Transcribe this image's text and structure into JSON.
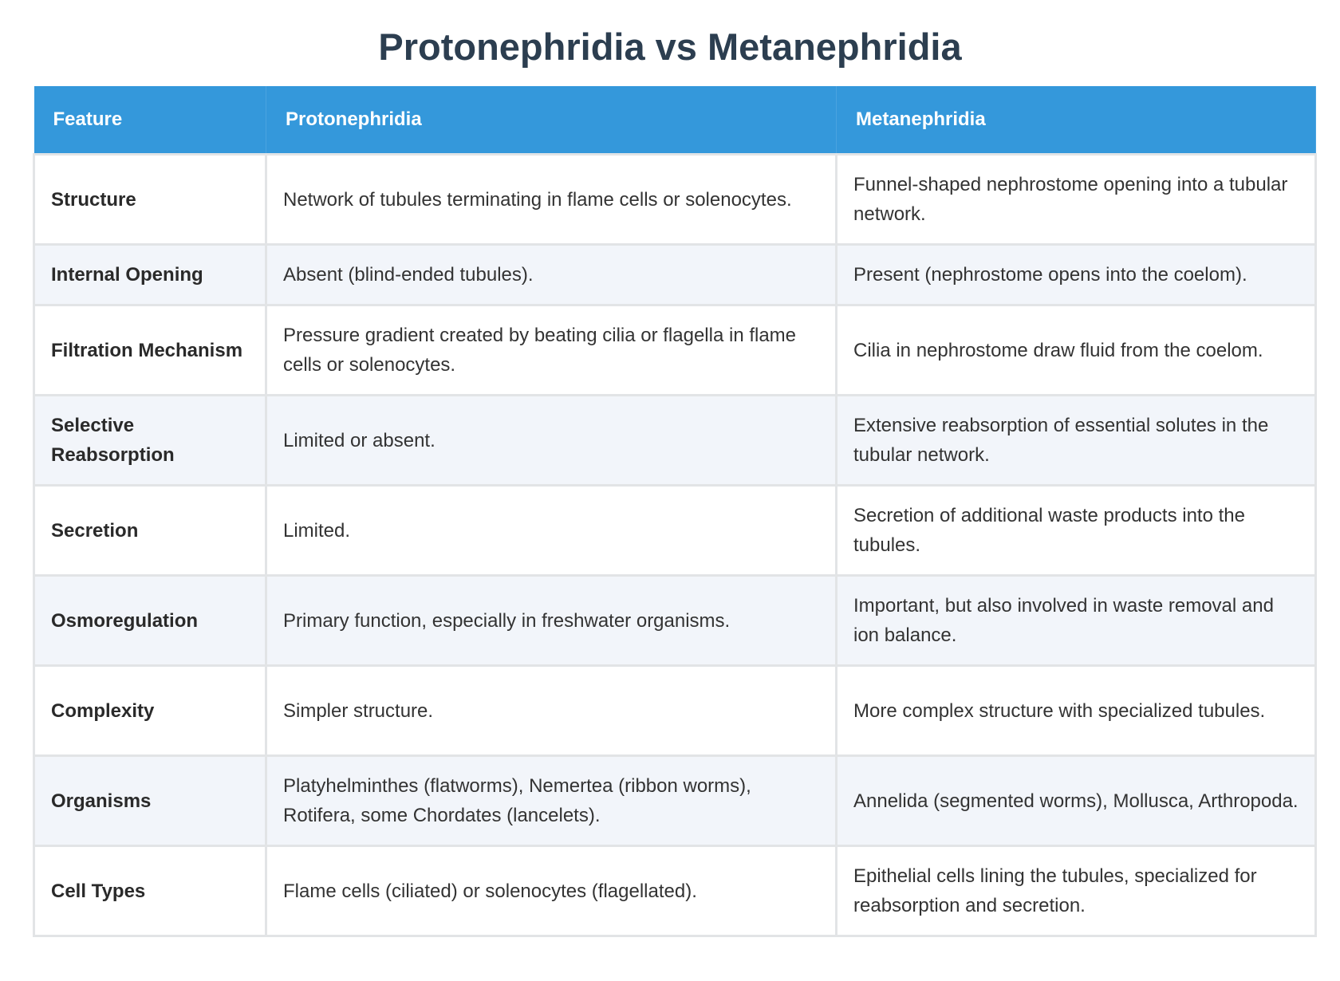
{
  "title": "Protonephridia vs Metanephridia",
  "headers": [
    "Feature",
    "Protonephridia",
    "Metanephridia"
  ],
  "rows": [
    [
      "Structure",
      "Network of tubules terminating in flame cells or solenocytes.",
      "Funnel-shaped nephrostome opening into a tubular network."
    ],
    [
      "Internal Opening",
      "Absent (blind-ended tubules).",
      "Present (nephrostome opens into the coelom)."
    ],
    [
      "Filtration Mechanism",
      "Pressure gradient created by beating cilia or flagella in flame cells or solenocytes.",
      "Cilia in nephrostome draw fluid from the coelom."
    ],
    [
      "Selective Reabsorption",
      "Limited or absent.",
      "Extensive reabsorption of essential solutes in the tubular network."
    ],
    [
      "Secretion",
      "Limited.",
      "Secretion of additional waste products into the tubules."
    ],
    [
      "Osmoregulation",
      "Primary function, especially in freshwater organisms.",
      "Important, but also involved in waste removal and ion balance."
    ],
    [
      "Complexity",
      "Simpler structure.",
      "More complex structure with specialized tubules."
    ],
    [
      "Organisms",
      "Platyhelminthes (flatworms), Nemertea (ribbon worms), Rotifera, some Chordates (lancelets).",
      "Annelida (segmented worms), Mollusca, Arthropoda."
    ],
    [
      "Cell Types",
      "Flame cells (ciliated) or solenocytes (flagellated).",
      "Epithelial cells lining the tubules, specialized for reabsorption and secretion."
    ]
  ],
  "colors": {
    "header": "#3498db",
    "title": "#2c3e50",
    "alt_row": "#f2f5fa"
  }
}
